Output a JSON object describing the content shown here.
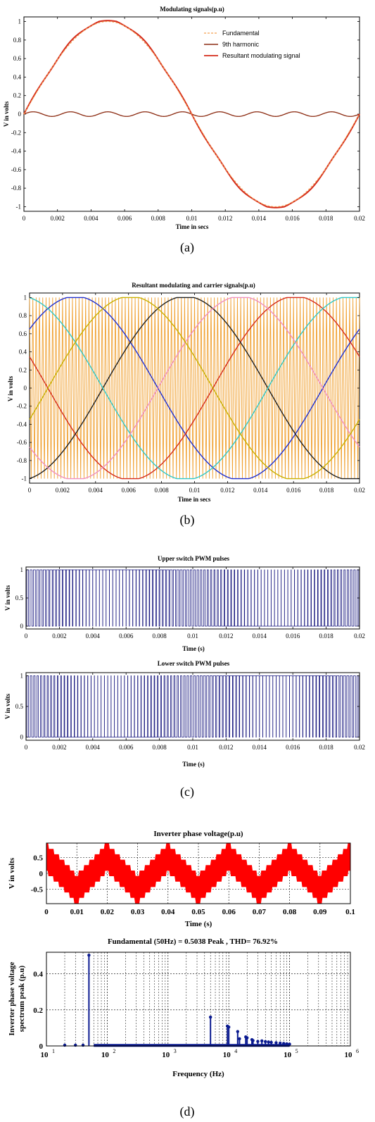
{
  "chart_data": [
    {
      "id": "a",
      "type": "line",
      "title": "Modulating signals(p.u)",
      "xlabel": "Time in secs",
      "ylabel": "V in volts",
      "xlim": [
        0,
        0.02
      ],
      "ylim": [
        -1.05,
        1.05
      ],
      "xticks": [
        0,
        0.002,
        0.004,
        0.006,
        0.008,
        0.01,
        0.012,
        0.014,
        0.016,
        0.018,
        0.02
      ],
      "yticks": [
        -1,
        -0.8,
        -0.6,
        -0.4,
        -0.2,
        0,
        0.2,
        0.4,
        0.6,
        0.8,
        1
      ],
      "grid": false,
      "legend_position": "top-right",
      "series": [
        {
          "name": "Fundamental",
          "color": "#f4a050",
          "style": "dashed",
          "function": "sine",
          "amplitude": 1.0,
          "frequency_hz": 50
        },
        {
          "name": "9th harmonic",
          "color": "#8b2a10",
          "style": "solid",
          "function": "sine",
          "amplitude": 0.025,
          "frequency_hz": 450
        },
        {
          "name": "Resultant modulating signal",
          "color": "#d42a1a",
          "style": "solid",
          "function": "trapezoid",
          "amplitude": 1.0,
          "frequency_hz": 50
        }
      ],
      "caption": "(a)"
    },
    {
      "id": "b",
      "type": "line",
      "title": "Resultant modulating and carrier signals(p.u)",
      "xlabel": "Time in secs",
      "ylabel": "V in volts",
      "xlim": [
        0,
        0.02
      ],
      "ylim": [
        -1.05,
        1.05
      ],
      "xticks": [
        0,
        0.002,
        0.004,
        0.006,
        0.008,
        0.01,
        0.012,
        0.014,
        0.016,
        0.018,
        0.02
      ],
      "yticks": [
        -1,
        -0.8,
        -0.6,
        -0.4,
        -0.2,
        0,
        0.2,
        0.4,
        0.6,
        0.8,
        1
      ],
      "grid": false,
      "carrier": {
        "color": "#f0a030",
        "function": "triangle",
        "min": -1,
        "max": 1,
        "cycles": 100
      },
      "series": [
        {
          "color": "#1f2fd0",
          "phase_deg": 40
        },
        {
          "color": "#d42a1a",
          "phase_deg": 160
        },
        {
          "color": "#202020",
          "phase_deg": 280
        },
        {
          "color": "#30c8c8",
          "phase_deg": 100
        },
        {
          "color": "#f090c0",
          "phase_deg": 220
        },
        {
          "color": "#c8b000",
          "phase_deg": 340
        }
      ],
      "caption": "(b)"
    },
    {
      "id": "c1",
      "type": "line",
      "title": "Upper switch PWM pulses",
      "xlabel": "Time (s)",
      "ylabel": "V in volts",
      "xlim": [
        0,
        0.02
      ],
      "ylim": [
        -0.05,
        1.05
      ],
      "xticks": [
        0,
        0.002,
        0.004,
        0.006,
        0.008,
        0.01,
        0.012,
        0.014,
        0.016,
        0.018,
        0.02
      ],
      "yticks": [
        0,
        0.5,
        1
      ],
      "grid": false,
      "pulses": 100,
      "color": "#1a1a80"
    },
    {
      "id": "c2",
      "type": "line",
      "title": "Lower switch PWM pulses",
      "xlabel": "Time (s)",
      "ylabel": "V in volts",
      "xlim": [
        0,
        0.02
      ],
      "ylim": [
        -0.05,
        1.05
      ],
      "xticks": [
        0,
        0.002,
        0.004,
        0.006,
        0.008,
        0.01,
        0.012,
        0.014,
        0.016,
        0.018,
        0.02
      ],
      "yticks": [
        0,
        0.5,
        1
      ],
      "grid": false,
      "pulses": 100,
      "color": "#1a1a80",
      "caption": "(c)"
    },
    {
      "id": "d1",
      "type": "area",
      "title": "Inverter phase voltage(p.u)",
      "xlabel": "Time (s)",
      "ylabel": "V in volts",
      "xlim": [
        0,
        0.1
      ],
      "ylim": [
        -0.95,
        0.95
      ],
      "xticks": [
        0,
        0.01,
        0.02,
        0.03,
        0.04,
        0.05,
        0.06,
        0.07,
        0.08,
        0.09,
        0.1
      ],
      "yticks": [
        -0.5,
        0,
        0.5
      ],
      "grid": true,
      "color": "#ff0000",
      "frequency_hz": 50,
      "band_center_amplitude": 0.5,
      "band_half_width": 0.42
    },
    {
      "id": "d2",
      "type": "bar",
      "title": "Fundamental (50Hz) = 0.5038 Peak , THD= 76.92%",
      "xlabel": "Frequency (Hz)",
      "ylabel_lines": [
        "Inverter phase voltage",
        "spectrum peak (p.u)"
      ],
      "xscale": "log",
      "xlim": [
        10,
        1000000
      ],
      "ylim": [
        0,
        0.52
      ],
      "yticks": [
        0,
        0.2,
        0.4
      ],
      "grid": true,
      "color": "#0a1a90",
      "stems": [
        {
          "f": 20,
          "v": 0.004
        },
        {
          "f": 30,
          "v": 0.004
        },
        {
          "f": 40,
          "v": 0.004
        },
        {
          "f": 50,
          "v": 0.5038
        },
        {
          "f": 5000,
          "v": 0.16
        },
        {
          "f": 9500,
          "v": 0.11
        },
        {
          "f": 10000,
          "v": 0.105
        },
        {
          "f": 14000,
          "v": 0.08
        },
        {
          "f": 15000,
          "v": 0.04
        },
        {
          "f": 19000,
          "v": 0.05
        },
        {
          "f": 20000,
          "v": 0.045
        },
        {
          "f": 24000,
          "v": 0.035
        },
        {
          "f": 25000,
          "v": 0.03
        },
        {
          "f": 30000,
          "v": 0.025
        },
        {
          "f": 35000,
          "v": 0.028
        },
        {
          "f": 40000,
          "v": 0.024
        },
        {
          "f": 45000,
          "v": 0.022
        },
        {
          "f": 50000,
          "v": 0.02
        },
        {
          "f": 60000,
          "v": 0.018
        },
        {
          "f": 70000,
          "v": 0.016
        },
        {
          "f": 80000,
          "v": 0.014
        },
        {
          "f": 90000,
          "v": 0.012
        },
        {
          "f": 100000,
          "v": 0.01
        }
      ],
      "floor": {
        "from": 60,
        "to": 100000,
        "v": 0.003
      },
      "xtick_labels": [
        {
          "base": "10",
          "exp": "1"
        },
        {
          "base": "10",
          "exp": "2"
        },
        {
          "base": "10",
          "exp": "3"
        },
        {
          "base": "10",
          "exp": "4"
        },
        {
          "base": "10",
          "exp": "5"
        },
        {
          "base": "10",
          "exp": "6"
        }
      ],
      "caption": "(d)"
    }
  ]
}
